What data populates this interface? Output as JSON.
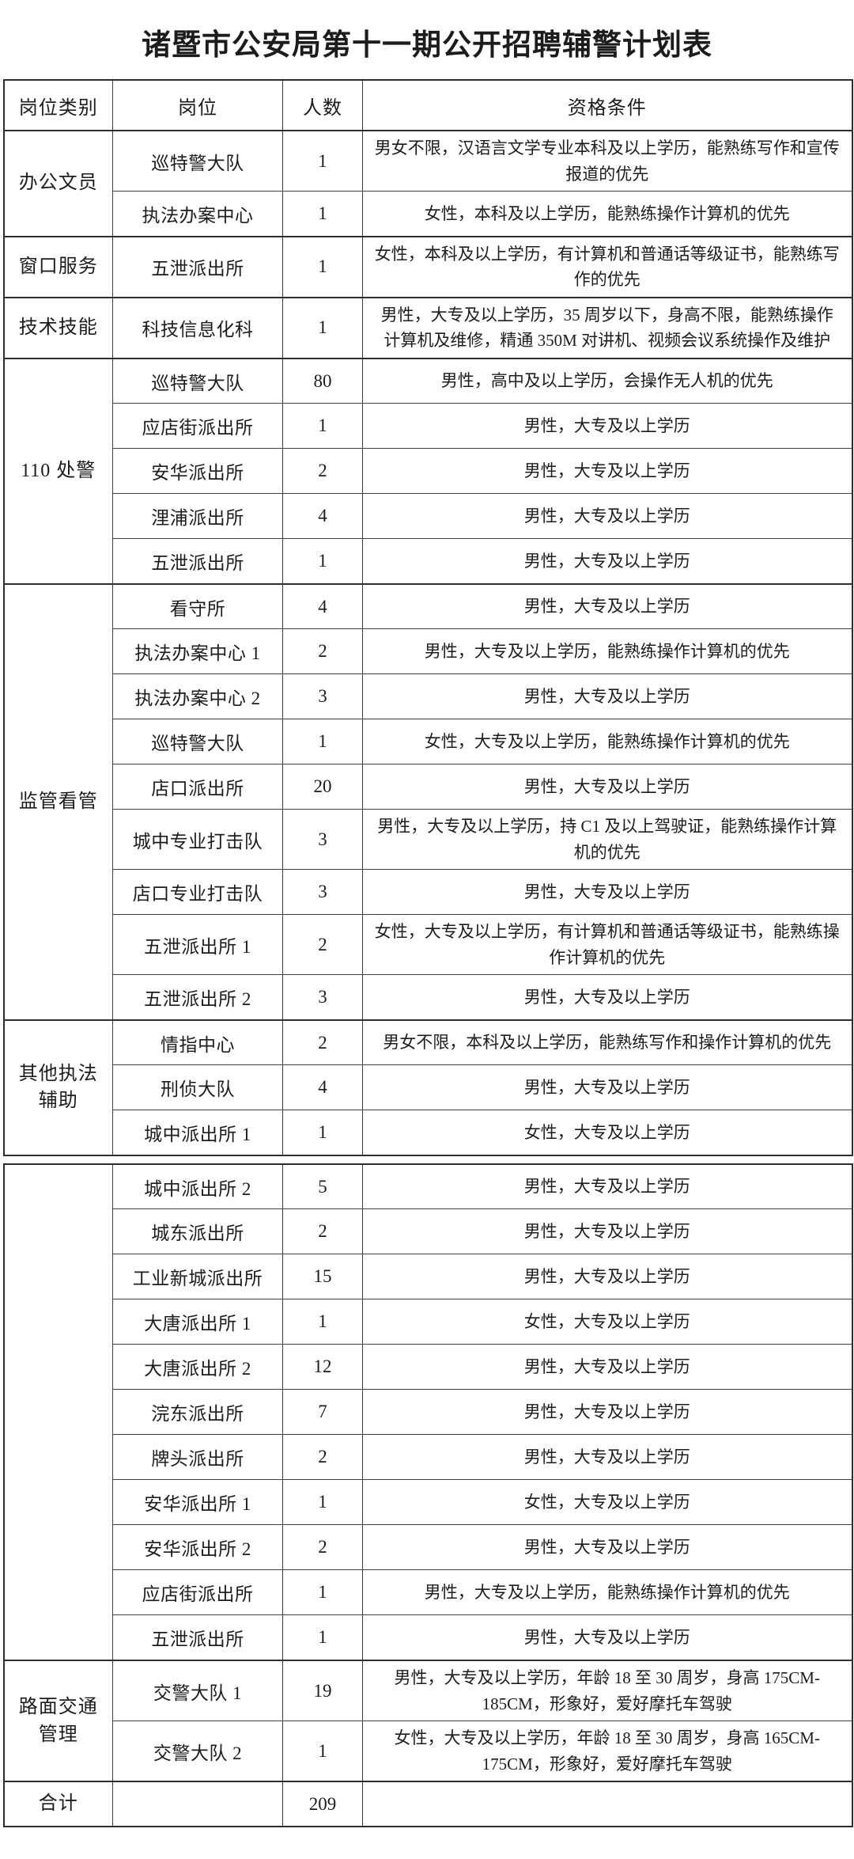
{
  "title": "诸暨市公安局第十一期公开招聘辅警计划表",
  "colors": {
    "background": "#ffffff",
    "text": "#1c1c1c",
    "border_thin": "#404040",
    "border_thick": "#2e2e2e"
  },
  "table": {
    "headers": [
      "岗位类别",
      "岗位",
      "人数",
      "资格条件"
    ],
    "blocks": [
      {
        "show_header": true,
        "groups": [
          {
            "category": "办公文员",
            "rows": [
              {
                "position": "巡特警大队",
                "count": "1",
                "requirement": "男女不限，汉语言文学专业本科及以上学历，能熟练写作和宣传报道的优先"
              },
              {
                "position": "执法办案中心",
                "count": "1",
                "requirement": "女性，本科及以上学历，能熟练操作计算机的优先"
              }
            ]
          },
          {
            "category": "窗口服务",
            "rows": [
              {
                "position": "五泄派出所",
                "count": "1",
                "requirement": "女性，本科及以上学历，有计算机和普通话等级证书，能熟练写作的优先"
              }
            ]
          },
          {
            "category": "技术技能",
            "rows": [
              {
                "position": "科技信息化科",
                "count": "1",
                "requirement": "男性，大专及以上学历，35 周岁以下，身高不限，能熟练操作计算机及维修，精通 350M 对讲机、视频会议系统操作及维护"
              }
            ]
          },
          {
            "category": "110 处警",
            "rows": [
              {
                "position": "巡特警大队",
                "count": "80",
                "requirement": "男性，高中及以上学历，会操作无人机的优先"
              },
              {
                "position": "应店街派出所",
                "count": "1",
                "requirement": "男性，大专及以上学历"
              },
              {
                "position": "安华派出所",
                "count": "2",
                "requirement": "男性，大专及以上学历"
              },
              {
                "position": "浬浦派出所",
                "count": "4",
                "requirement": "男性，大专及以上学历"
              },
              {
                "position": "五泄派出所",
                "count": "1",
                "requirement": "男性，大专及以上学历"
              }
            ]
          },
          {
            "category": "监管看管",
            "rows": [
              {
                "position": "看守所",
                "count": "4",
                "requirement": "男性，大专及以上学历"
              },
              {
                "position": "执法办案中心 1",
                "count": "2",
                "requirement": "男性，大专及以上学历，能熟练操作计算机的优先"
              },
              {
                "position": "执法办案中心 2",
                "count": "3",
                "requirement": "男性，大专及以上学历"
              },
              {
                "position": "巡特警大队",
                "count": "1",
                "requirement": "女性，大专及以上学历，能熟练操作计算机的优先"
              },
              {
                "position": "店口派出所",
                "count": "20",
                "requirement": "男性，大专及以上学历"
              },
              {
                "position": "城中专业打击队",
                "count": "3",
                "requirement": "男性，大专及以上学历，持 C1 及以上驾驶证，能熟练操作计算机的优先"
              },
              {
                "position": "店口专业打击队",
                "count": "3",
                "requirement": "男性，大专及以上学历"
              },
              {
                "position": "五泄派出所 1",
                "count": "2",
                "requirement": "女性，大专及以上学历，有计算机和普通话等级证书，能熟练操作计算机的优先"
              },
              {
                "position": "五泄派出所 2",
                "count": "3",
                "requirement": "男性，大专及以上学历"
              }
            ]
          },
          {
            "category": "其他执法\n辅助",
            "rows": [
              {
                "position": "情指中心",
                "count": "2",
                "requirement": "男女不限，本科及以上学历，能熟练写作和操作计算机的优先"
              },
              {
                "position": "刑侦大队",
                "count": "4",
                "requirement": "男性，大专及以上学历"
              },
              {
                "position": "城中派出所 1",
                "count": "1",
                "requirement": "女性，大专及以上学历"
              }
            ]
          }
        ]
      },
      {
        "show_header": false,
        "groups": [
          {
            "category": "",
            "rows": [
              {
                "position": "城中派出所 2",
                "count": "5",
                "requirement": "男性，大专及以上学历"
              },
              {
                "position": "城东派出所",
                "count": "2",
                "requirement": "男性，大专及以上学历"
              },
              {
                "position": "工业新城派出所",
                "count": "15",
                "requirement": "男性，大专及以上学历"
              },
              {
                "position": "大唐派出所 1",
                "count": "1",
                "requirement": "女性，大专及以上学历"
              },
              {
                "position": "大唐派出所 2",
                "count": "12",
                "requirement": "男性，大专及以上学历"
              },
              {
                "position": "浣东派出所",
                "count": "7",
                "requirement": "男性，大专及以上学历"
              },
              {
                "position": "牌头派出所",
                "count": "2",
                "requirement": "男性，大专及以上学历"
              },
              {
                "position": "安华派出所 1",
                "count": "1",
                "requirement": "女性，大专及以上学历"
              },
              {
                "position": "安华派出所 2",
                "count": "2",
                "requirement": "男性，大专及以上学历"
              },
              {
                "position": "应店街派出所",
                "count": "1",
                "requirement": "男性，大专及以上学历，能熟练操作计算机的优先"
              },
              {
                "position": "五泄派出所",
                "count": "1",
                "requirement": "男性，大专及以上学历"
              }
            ]
          },
          {
            "category": "路面交通\n管理",
            "rows": [
              {
                "position": "交警大队 1",
                "count": "19",
                "requirement": "男性，大专及以上学历，年龄 18 至 30 周岁，身高 175CM-185CM，形象好，爱好摩托车驾驶"
              },
              {
                "position": "交警大队 2",
                "count": "1",
                "requirement": "女性，大专及以上学历，年龄 18 至 30 周岁，身高 165CM-175CM，形象好，爱好摩托车驾驶"
              }
            ]
          },
          {
            "category": "合计",
            "is_total": true,
            "rows": [
              {
                "position": "",
                "count": "209",
                "requirement": ""
              }
            ]
          }
        ]
      }
    ]
  }
}
